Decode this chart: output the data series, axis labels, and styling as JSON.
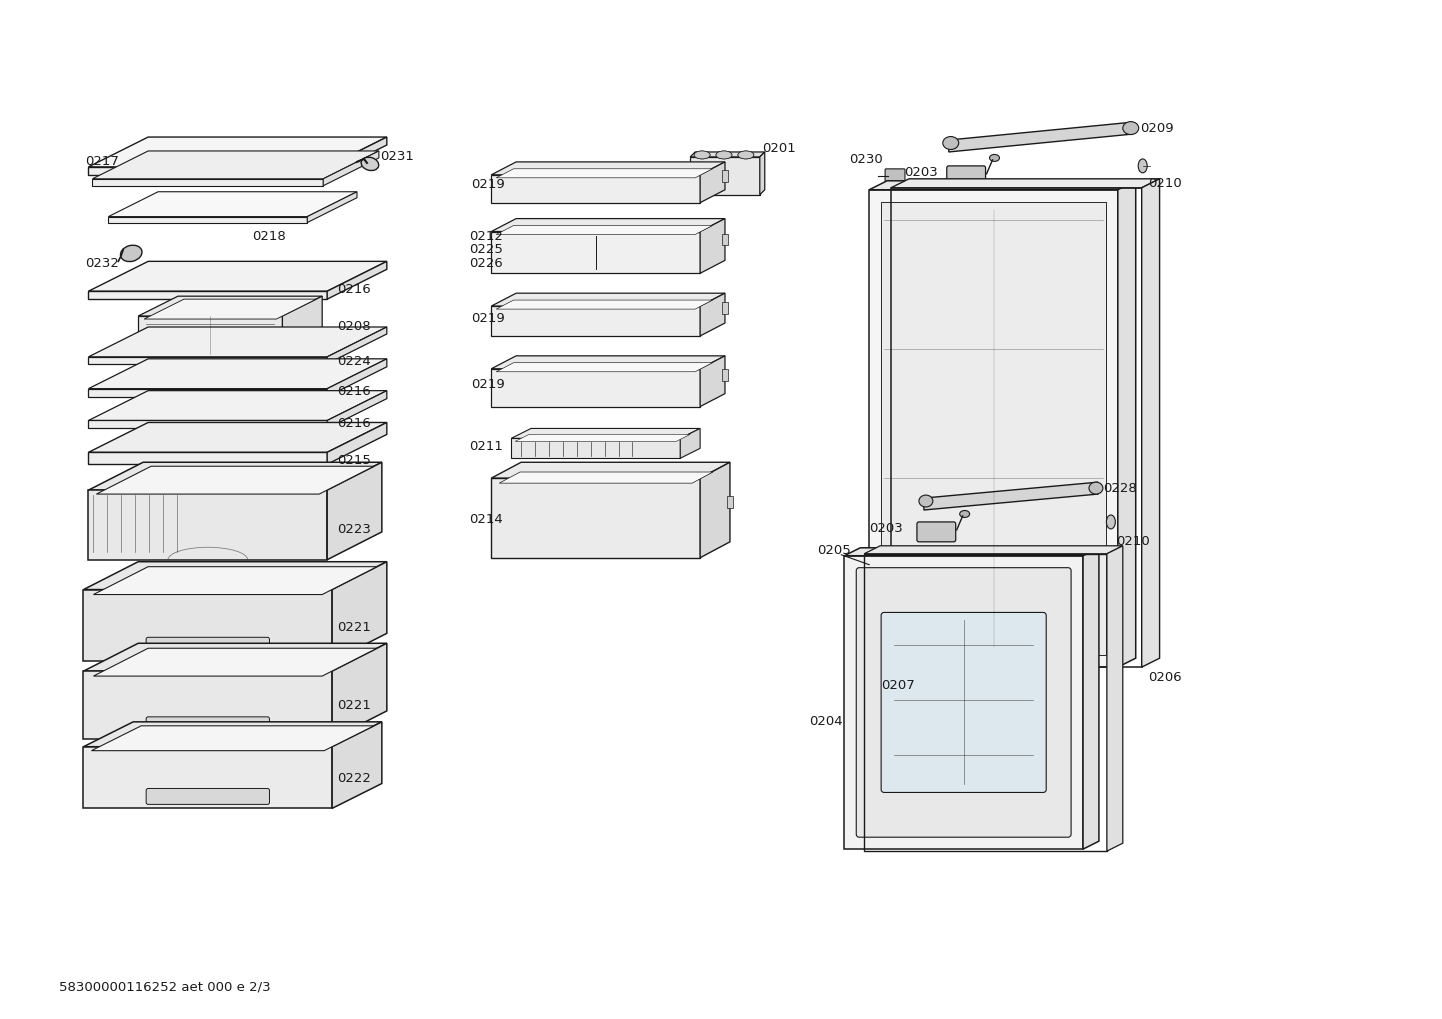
{
  "footer_text": "58300000116252 aet 000 e 2/3",
  "bg_color": "#ffffff",
  "lc": "#1a1a1a",
  "lfs": 9.5,
  "ffs": 9.5
}
